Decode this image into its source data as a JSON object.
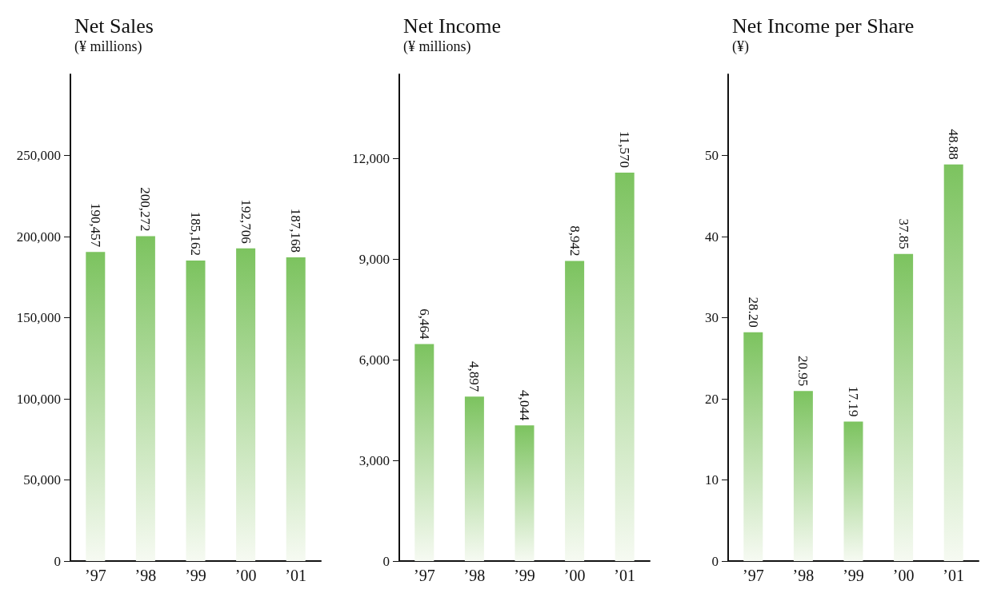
{
  "chart_data": [
    {
      "type": "bar",
      "title": "Net Sales",
      "subtitle": "(¥ millions)",
      "categories": [
        "’97",
        "’98",
        "’99",
        "’00",
        "’01"
      ],
      "values": [
        190457,
        200272,
        185162,
        192706,
        187168
      ],
      "value_labels": [
        "190,457",
        "200,272",
        "185,162",
        "192,706",
        "187,168"
      ],
      "color": "#7cc35f",
      "ylim": [
        0,
        300000
      ],
      "yticks": [
        0,
        {
          "value": 50000,
          "label": "50,000"
        },
        {
          "value": 100000,
          "label": "100,000"
        },
        {
          "value": 150000,
          "label": "150,000"
        },
        {
          "value": 200000,
          "label": "200,000"
        },
        {
          "value": 250000,
          "label": "250,000"
        }
      ],
      "grid": false
    },
    {
      "type": "bar",
      "title": "Net Income",
      "subtitle": "(¥ millions)",
      "categories": [
        "’97",
        "’98",
        "’99",
        "’00",
        "’01"
      ],
      "values": [
        6464,
        4897,
        4044,
        8942,
        11570
      ],
      "value_labels": [
        "6,464",
        "4,897",
        "4,044",
        "8,942",
        "11,570"
      ],
      "color": "#7cc35f",
      "ylim": [
        0,
        14500
      ],
      "yticks": [
        0,
        {
          "value": 3000,
          "label": "3,000"
        },
        {
          "value": 6000,
          "label": "6,000"
        },
        {
          "value": 9000,
          "label": "9,000"
        },
        {
          "value": 12000,
          "label": "12,000"
        }
      ],
      "grid": false
    },
    {
      "type": "bar",
      "title": "Net Income per Share",
      "subtitle": "(¥)",
      "categories": [
        "’97",
        "’98",
        "’99",
        "’00",
        "’01"
      ],
      "values": [
        28.2,
        20.95,
        17.19,
        37.85,
        48.88
      ],
      "value_labels": [
        "28.20",
        "20.95",
        "17.19",
        "37.85",
        "48.88"
      ],
      "color": "#7cc35f",
      "ylim": [
        0,
        60
      ],
      "yticks": [
        0,
        10,
        20,
        30,
        40,
        50
      ],
      "grid": false
    }
  ]
}
